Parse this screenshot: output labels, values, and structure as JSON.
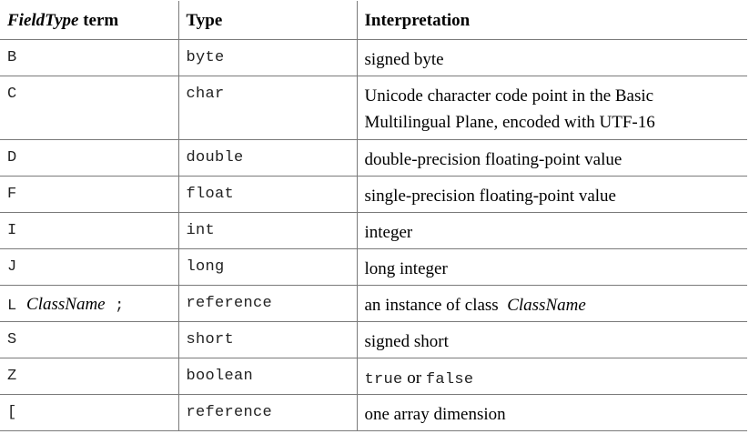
{
  "headers": {
    "fieldtype_italic": "FieldType",
    "fieldtype_rest": " term",
    "type": "Type",
    "interpretation": "Interpretation"
  },
  "rows": [
    {
      "term": "B",
      "type": "byte",
      "interp": "signed byte"
    },
    {
      "term": "C",
      "type": "char",
      "interp": "Unicode character code point in the Basic Multilingual Plane, encoded with UTF-16"
    },
    {
      "term": "D",
      "type": "double",
      "interp": "double-precision floating-point value"
    },
    {
      "term": "F",
      "type": "float",
      "interp": "single-precision floating-point value"
    },
    {
      "term": "I",
      "type": "int",
      "interp": "integer"
    },
    {
      "term": "J",
      "type": "long",
      "interp": "long integer"
    },
    {
      "term_prefix": "L",
      "term_italic": "ClassName",
      "term_suffix": ";",
      "type": "reference",
      "interp_prefix": "an instance of class",
      "interp_italic": "ClassName"
    },
    {
      "term": "S",
      "type": "short",
      "interp": "signed short"
    },
    {
      "term": "Z",
      "type": "boolean",
      "interp_code1": "true",
      "interp_mid": "or",
      "interp_code2": "false"
    },
    {
      "term": "[",
      "type": "reference",
      "interp": "one array dimension"
    }
  ]
}
